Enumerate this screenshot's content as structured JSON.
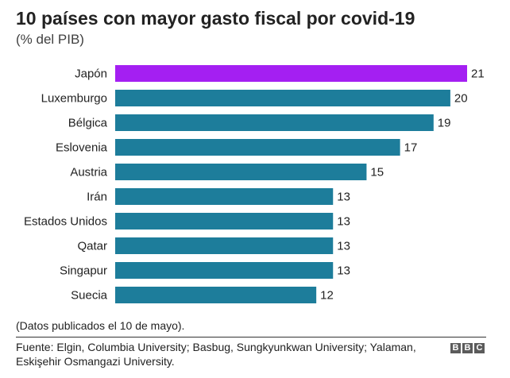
{
  "chart_data": {
    "type": "bar",
    "orientation": "horizontal",
    "title": "10 países con mayor gasto fiscal por covid-19",
    "subtitle": "(% del PIB)",
    "categories": [
      "Japón",
      "Luxemburgo",
      "Bélgica",
      "Eslovenia",
      "Austria",
      "Irán",
      "Estados Unidos",
      "Qatar",
      "Singapur",
      "Suecia"
    ],
    "values": [
      21,
      20,
      19,
      17,
      15,
      13,
      13,
      13,
      13,
      12
    ],
    "xlim": [
      0,
      21
    ],
    "grid": false,
    "highlight_category": "Japón",
    "bar_color": "#1d7d9b",
    "highlight_color": "#a41ff2",
    "note": "(Datos publicados el 10 de mayo).",
    "source": "Fuente: Elgin, Columbia University; Basbug, Sungkyunkwan University; Yalaman, Eskişehir Osmangazi University."
  },
  "branding": {
    "logo_letters": [
      "B",
      "B",
      "C"
    ]
  }
}
